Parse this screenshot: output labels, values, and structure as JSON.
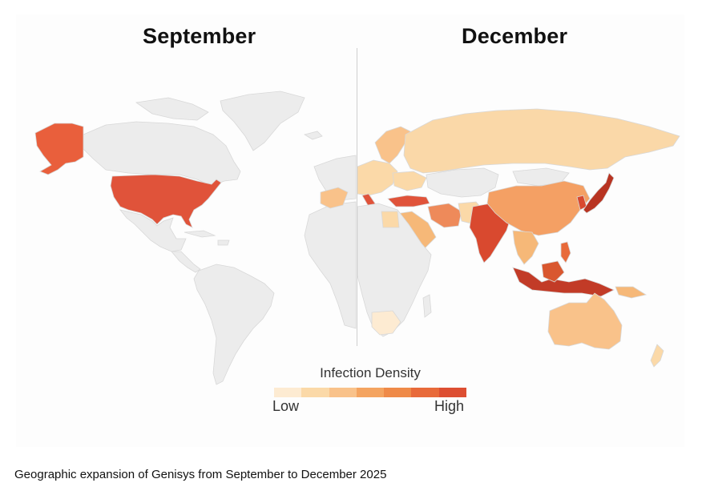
{
  "panels": {
    "left_title": "September",
    "right_title": "December"
  },
  "legend": {
    "title": "Infection Density",
    "low_label": "Low",
    "high_label": "High",
    "scale_colors": [
      "#fdebd2",
      "#fbd9a8",
      "#f9c28a",
      "#f4a460",
      "#ef8a48",
      "#e86a3a",
      "#dd4e32"
    ]
  },
  "caption": "Geographic expansion of Genisys from September to December 2025",
  "colors": {
    "no_data": "#ececec",
    "land_stroke": "#d8d8d8"
  },
  "regions": {
    "september": [
      {
        "name": "Alaska",
        "level": "high"
      },
      {
        "name": "United States",
        "level": "high"
      }
    ],
    "december": [
      {
        "name": "Russia",
        "level": "low"
      },
      {
        "name": "China",
        "level": "medium"
      },
      {
        "name": "Japan",
        "level": "very-high"
      },
      {
        "name": "India",
        "level": "high"
      },
      {
        "name": "Indonesia",
        "level": "very-high"
      },
      {
        "name": "Turkey",
        "level": "high"
      },
      {
        "name": "Australia",
        "level": "low"
      }
    ]
  }
}
